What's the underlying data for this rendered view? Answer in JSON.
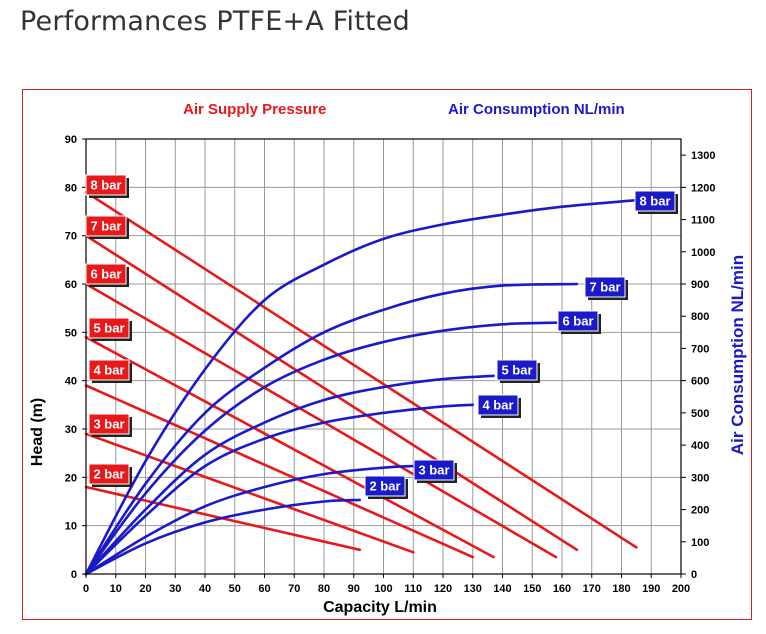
{
  "page": {
    "title": "Performances PTFE+A Fitted"
  },
  "chart_data": {
    "type": "line",
    "legend": {
      "red": "Air Supply Pressure",
      "blue": "Air Consumption NL/min",
      "placement": "top"
    },
    "xlabel": "Capacity L/min",
    "ylabel": "Head (m)",
    "y2label": "Air Consumption NL/min",
    "xlim": [
      0,
      200
    ],
    "ylim": [
      0,
      90
    ],
    "y2lim": [
      0,
      1350
    ],
    "xticks": [
      0,
      10,
      20,
      30,
      40,
      50,
      60,
      70,
      80,
      90,
      100,
      110,
      120,
      130,
      140,
      150,
      160,
      170,
      180,
      190,
      200
    ],
    "yticks": [
      0,
      10,
      20,
      30,
      40,
      50,
      60,
      70,
      80,
      90
    ],
    "y2ticks": [
      0,
      100,
      200,
      300,
      400,
      500,
      600,
      700,
      800,
      900,
      1000,
      1100,
      1200,
      1300
    ],
    "grid": true,
    "colors": {
      "head": "#e8191b",
      "air": "#1a1ac8",
      "frame": "#d22222"
    },
    "head_series": [
      {
        "name": "8 bar",
        "x": [
          0,
          185
        ],
        "y": [
          79,
          5.5
        ]
      },
      {
        "name": "7 bar",
        "x": [
          0,
          165
        ],
        "y": [
          70,
          5
        ]
      },
      {
        "name": "6 bar",
        "x": [
          0,
          158
        ],
        "y": [
          60,
          3.5
        ]
      },
      {
        "name": "5 bar",
        "x": [
          0,
          137
        ],
        "y": [
          49,
          3.5
        ]
      },
      {
        "name": "4 bar",
        "x": [
          0,
          130
        ],
        "y": [
          39,
          3.5
        ]
      },
      {
        "name": "3 bar",
        "x": [
          0,
          110
        ],
        "y": [
          29,
          4.5
        ]
      },
      {
        "name": "2 bar",
        "x": [
          0,
          92
        ],
        "y": [
          18,
          5
        ]
      }
    ],
    "air_series": [
      {
        "name": "8 bar",
        "x": [
          0,
          20,
          40,
          60,
          80,
          100,
          120,
          140,
          160,
          185
        ],
        "y": [
          0,
          350,
          635,
          850,
          960,
          1040,
          1085,
          1115,
          1140,
          1160
        ]
      },
      {
        "name": "7 bar",
        "x": [
          0,
          20,
          40,
          60,
          80,
          100,
          120,
          140,
          165
        ],
        "y": [
          0,
          280,
          500,
          640,
          750,
          820,
          870,
          895,
          900
        ]
      },
      {
        "name": "6 bar",
        "x": [
          0,
          20,
          40,
          60,
          80,
          100,
          120,
          140,
          158
        ],
        "y": [
          0,
          250,
          445,
          580,
          665,
          720,
          755,
          775,
          780
        ]
      },
      {
        "name": "5 bar",
        "x": [
          0,
          20,
          40,
          60,
          80,
          100,
          120,
          137
        ],
        "y": [
          0,
          200,
          370,
          470,
          540,
          580,
          605,
          615
        ]
      },
      {
        "name": "4 bar",
        "x": [
          0,
          20,
          40,
          60,
          80,
          100,
          120,
          130
        ],
        "y": [
          0,
          180,
          335,
          420,
          470,
          500,
          520,
          525
        ]
      },
      {
        "name": "3 bar",
        "x": [
          0,
          20,
          40,
          60,
          80,
          100,
          110
        ],
        "y": [
          0,
          115,
          210,
          270,
          310,
          330,
          335
        ]
      },
      {
        "name": "2 bar",
        "x": [
          0,
          20,
          40,
          60,
          80,
          92
        ],
        "y": [
          0,
          95,
          160,
          200,
          225,
          230
        ]
      }
    ],
    "badges": {
      "head": [
        "8 bar",
        "7 bar",
        "6 bar",
        "5 bar",
        "4 bar",
        "3 bar",
        "2 bar"
      ],
      "air": [
        "8 bar",
        "7 bar",
        "6 bar",
        "5 bar",
        "4 bar",
        "3 bar",
        "2 bar"
      ]
    }
  }
}
